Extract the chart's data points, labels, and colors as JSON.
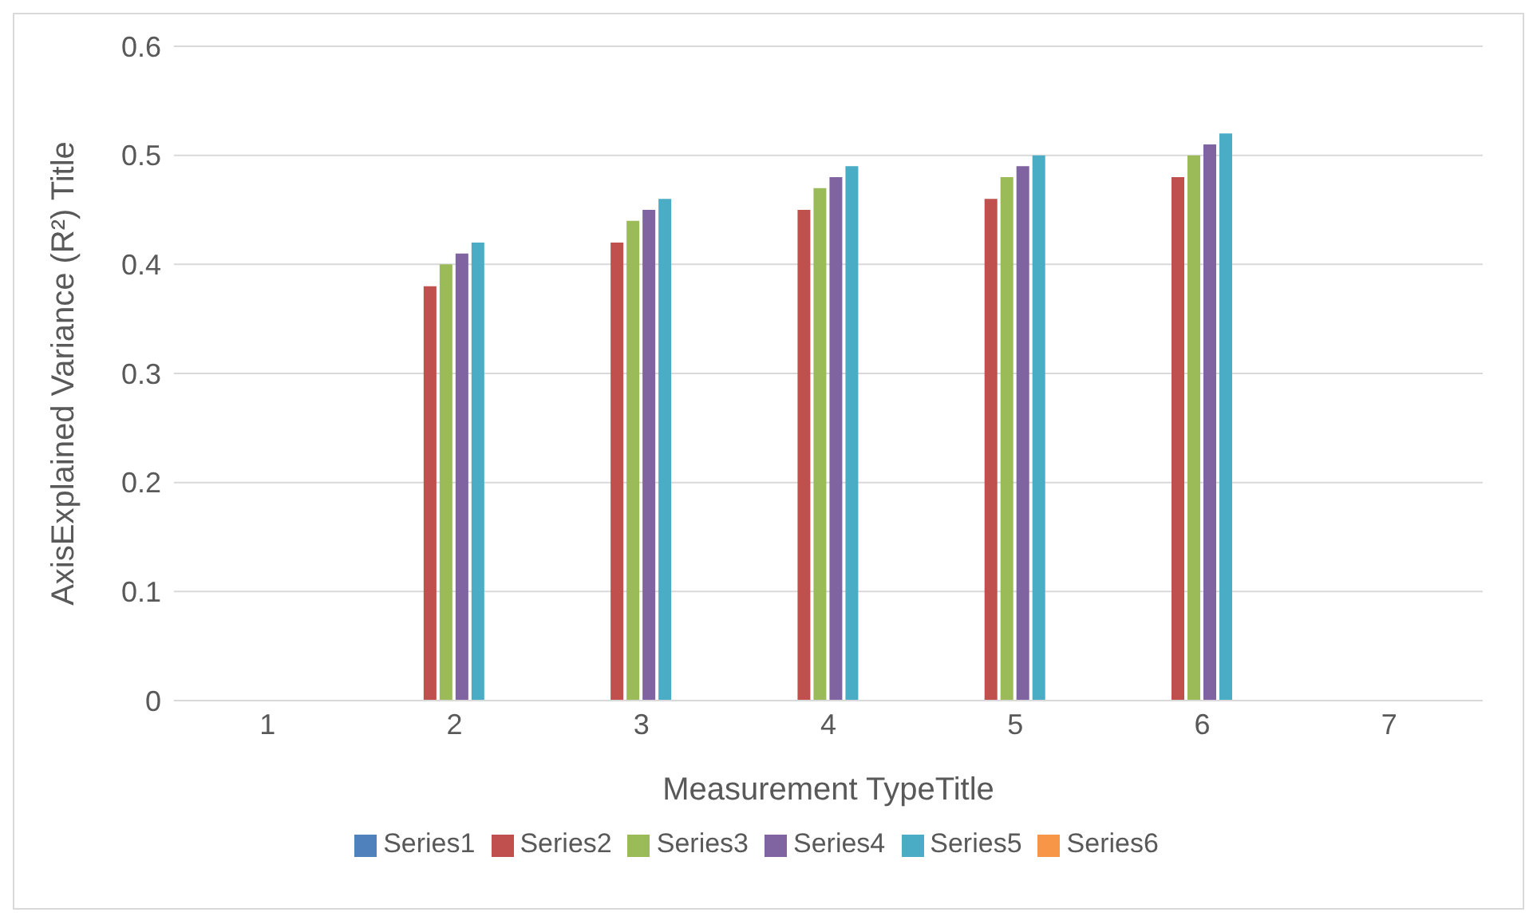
{
  "chart_data": {
    "type": "bar",
    "xlabel": "Measurement TypeTitle",
    "ylabel": "AxisExplained Variance (R²) Title",
    "categories": [
      "1",
      "2",
      "3",
      "4",
      "5",
      "6",
      "7"
    ],
    "series": [
      {
        "name": "Series1",
        "color": "#4f81bd",
        "values": [
          null,
          null,
          null,
          null,
          null,
          null,
          null
        ]
      },
      {
        "name": "Series2",
        "color": "#c0504d",
        "values": [
          null,
          0.38,
          0.42,
          0.45,
          0.46,
          0.48,
          null
        ]
      },
      {
        "name": "Series3",
        "color": "#9bbb59",
        "values": [
          null,
          0.4,
          0.44,
          0.47,
          0.48,
          0.5,
          null
        ]
      },
      {
        "name": "Series4",
        "color": "#8064a2",
        "values": [
          null,
          0.41,
          0.45,
          0.48,
          0.49,
          0.51,
          null
        ]
      },
      {
        "name": "Series5",
        "color": "#4bacc6",
        "values": [
          null,
          0.42,
          0.46,
          0.49,
          0.5,
          0.52,
          null
        ]
      },
      {
        "name": "Series6",
        "color": "#f79646",
        "values": [
          null,
          null,
          null,
          null,
          null,
          null,
          null
        ]
      }
    ],
    "ylim": [
      0,
      0.6
    ],
    "yticks": [
      0,
      0.1,
      0.2,
      0.3,
      0.4,
      0.5,
      0.6
    ],
    "grid": "y",
    "legend": "bottom"
  }
}
